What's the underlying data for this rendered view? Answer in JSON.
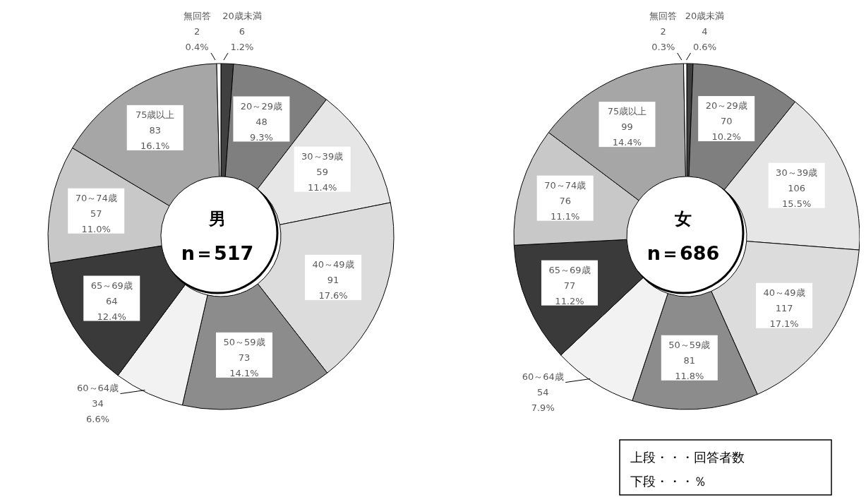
{
  "chart_data": [
    {
      "type": "donut",
      "title": "男",
      "subtitle": "n＝517",
      "categories": [
        "20歳未満",
        "20～29歳",
        "30～39歳",
        "40～49歳",
        "50～59歳",
        "60～64歳",
        "65～69歳",
        "70～74歳",
        "75歳以上",
        "無回答"
      ],
      "values": [
        6,
        48,
        59,
        91,
        73,
        34,
        64,
        57,
        83,
        2
      ],
      "value_labels": [
        "6\n1.2%",
        "48\n9.3%",
        "59\n11.4%",
        "91\n17.6%",
        "73\n14.1%",
        "34\n6.6%",
        "64\n12.4%",
        "57\n11.0%",
        "83\n16.1%",
        "2\n0.4%"
      ],
      "colors": [
        "#404040",
        "#7f7f7f",
        "#e6e6e6",
        "#dcdcdc",
        "#8c8c8c",
        "#f2f2f2",
        "#3a3a3a",
        "#c8c8c8",
        "#a6a6a6",
        "#ffffff"
      ],
      "legend": false
    },
    {
      "type": "donut",
      "title": "女",
      "subtitle": "n＝686",
      "categories": [
        "20歳未満",
        "20～29歳",
        "30～39歳",
        "40～49歳",
        "50～59歳",
        "60～64歳",
        "65～69歳",
        "70～74歳",
        "75歳以上",
        "無回答"
      ],
      "values": [
        4,
        70,
        106,
        117,
        81,
        54,
        77,
        76,
        99,
        2
      ],
      "value_labels": [
        "4\n0.6%",
        "70\n10.2%",
        "106\n15.5%",
        "117\n17.1%",
        "81\n11.8%",
        "54\n7.9%",
        "77\n11.2%",
        "76\n11.1%",
        "99\n14.4%",
        "2\n0.3%"
      ],
      "colors": [
        "#404040",
        "#7f7f7f",
        "#e6e6e6",
        "#dcdcdc",
        "#8c8c8c",
        "#f2f2f2",
        "#3a3a3a",
        "#c8c8c8",
        "#a6a6a6",
        "#ffffff"
      ],
      "legend": false,
      "annotations": [
        "上段・・・回答者数",
        "下段・・・％"
      ]
    }
  ]
}
